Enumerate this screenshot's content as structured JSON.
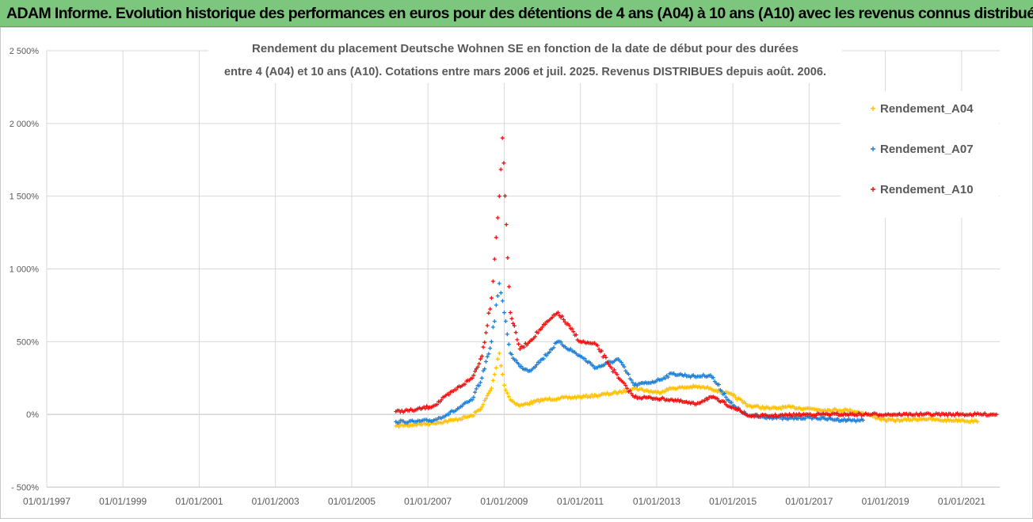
{
  "banner": {
    "title": "ADAM Informe. Evolution historique des performances en euros pour des détentions de 4 ans (A04) à 10 ans (A10) avec les revenus connus distribués"
  },
  "colors": {
    "banner_bg": "#7dc67d",
    "a04": "#ffc000",
    "a07": "#1f7fd4",
    "a10": "#ee1111",
    "grid": "#d9d9d9"
  },
  "chart_data": {
    "type": "scatter",
    "title_lines": [
      "Rendement du placement Deutsche Wohnen SE en fonction de la date de début pour des durées",
      "entre 4 (A04) et 10 ans (A10).  Cotations entre mars 2006 et juil. 2025. Revenus DISTRIBUES depuis août. 2006."
    ],
    "xlabel": "",
    "ylabel": "",
    "x_range": [
      "1997-01-01",
      "2022-01-01"
    ],
    "ylim": [
      -500,
      2500
    ],
    "y_ticks": [
      {
        "value": 2500,
        "label": "2 500%"
      },
      {
        "value": 2000,
        "label": "2 000%"
      },
      {
        "value": 1500,
        "label": "1 500%"
      },
      {
        "value": 1000,
        "label": "1 000%"
      },
      {
        "value": 500,
        "label": "500%"
      },
      {
        "value": 0,
        "label": "0%"
      },
      {
        "value": -500,
        "label": "- 500%"
      }
    ],
    "x_ticks": [
      {
        "value": "1997-01-01",
        "label": "01/01/1997"
      },
      {
        "value": "1999-01-01",
        "label": "01/01/1999"
      },
      {
        "value": "2001-01-01",
        "label": "01/01/2001"
      },
      {
        "value": "2003-01-01",
        "label": "01/01/2003"
      },
      {
        "value": "2005-01-01",
        "label": "01/01/2005"
      },
      {
        "value": "2007-01-01",
        "label": "01/01/2007"
      },
      {
        "value": "2009-01-01",
        "label": "01/01/2009"
      },
      {
        "value": "2011-01-01",
        "label": "01/01/2011"
      },
      {
        "value": "2013-01-01",
        "label": "01/01/2013"
      },
      {
        "value": "2015-01-01",
        "label": "01/01/2015"
      },
      {
        "value": "2017-01-01",
        "label": "01/01/2017"
      },
      {
        "value": "2019-01-01",
        "label": "01/01/2019"
      },
      {
        "value": "2021-01-01",
        "label": "01/01/2021"
      }
    ],
    "grid": true,
    "legend_position": "right",
    "series": [
      {
        "name": "Rendement_A04",
        "color": "#ffc000",
        "x": [
          "2006-03-01",
          "2006-09-01",
          "2007-03-01",
          "2007-09-01",
          "2008-03-01",
          "2008-06-01",
          "2008-09-01",
          "2008-11-15",
          "2009-01-01",
          "2009-03-01",
          "2009-06-01",
          "2010-01-01",
          "2010-06-01",
          "2011-01-01",
          "2011-06-01",
          "2012-01-01",
          "2012-06-01",
          "2013-01-01",
          "2013-06-01",
          "2014-01-01",
          "2014-06-01",
          "2015-01-01",
          "2015-06-01",
          "2016-01-01",
          "2016-06-01",
          "2017-01-01",
          "2017-06-01",
          "2018-01-01",
          "2018-06-01",
          "2019-01-01",
          "2019-06-01",
          "2020-01-01",
          "2020-06-01",
          "2021-01-01",
          "2021-06-01"
        ],
        "values": [
          -80,
          -70,
          -60,
          -40,
          -10,
          50,
          180,
          420,
          200,
          100,
          60,
          100,
          110,
          120,
          130,
          150,
          180,
          150,
          180,
          190,
          180,
          130,
          60,
          40,
          50,
          40,
          30,
          30,
          10,
          -40,
          -40,
          -30,
          -40,
          -40,
          -50
        ]
      },
      {
        "name": "Rendement_A07",
        "color": "#1f7fd4",
        "x": [
          "2006-03-01",
          "2006-09-01",
          "2007-03-01",
          "2007-09-01",
          "2008-03-01",
          "2008-06-01",
          "2008-09-01",
          "2008-11-15",
          "2009-01-01",
          "2009-03-01",
          "2009-06-01",
          "2009-09-01",
          "2010-01-01",
          "2010-06-01",
          "2011-01-01",
          "2011-06-01",
          "2012-01-01",
          "2012-06-01",
          "2013-01-01",
          "2013-06-01",
          "2014-01-01",
          "2014-06-01",
          "2015-01-01",
          "2015-06-01",
          "2016-01-01",
          "2016-06-01",
          "2017-01-01",
          "2017-06-01",
          "2018-01-01",
          "2018-06-01"
        ],
        "values": [
          -50,
          -50,
          -40,
          20,
          100,
          250,
          500,
          900,
          700,
          420,
          330,
          300,
          380,
          500,
          400,
          320,
          380,
          200,
          230,
          280,
          260,
          270,
          60,
          -10,
          -20,
          -30,
          -20,
          -30,
          -40,
          -40
        ]
      },
      {
        "name": "Rendement_A10",
        "color": "#ee1111",
        "x": [
          "2006-03-01",
          "2006-09-01",
          "2007-03-01",
          "2007-09-01",
          "2008-03-01",
          "2008-06-01",
          "2008-09-01",
          "2008-11-15",
          "2008-12-15",
          "2009-03-01",
          "2009-06-01",
          "2009-09-01",
          "2010-01-01",
          "2010-06-01",
          "2011-01-01",
          "2011-06-01",
          "2012-01-01",
          "2012-06-01",
          "2013-01-01",
          "2013-06-01",
          "2014-01-01",
          "2014-06-01",
          "2015-01-01",
          "2015-06-01",
          "2016-01-01",
          "2017-01-01",
          "2018-01-01",
          "2019-01-01",
          "2020-01-01",
          "2021-01-01",
          "2021-12-01"
        ],
        "values": [
          20,
          30,
          60,
          160,
          250,
          400,
          800,
          1500,
          1900,
          700,
          450,
          500,
          600,
          700,
          500,
          480,
          250,
          120,
          110,
          100,
          70,
          120,
          50,
          -10,
          -10,
          0,
          0,
          0,
          0,
          0,
          0
        ]
      }
    ]
  }
}
